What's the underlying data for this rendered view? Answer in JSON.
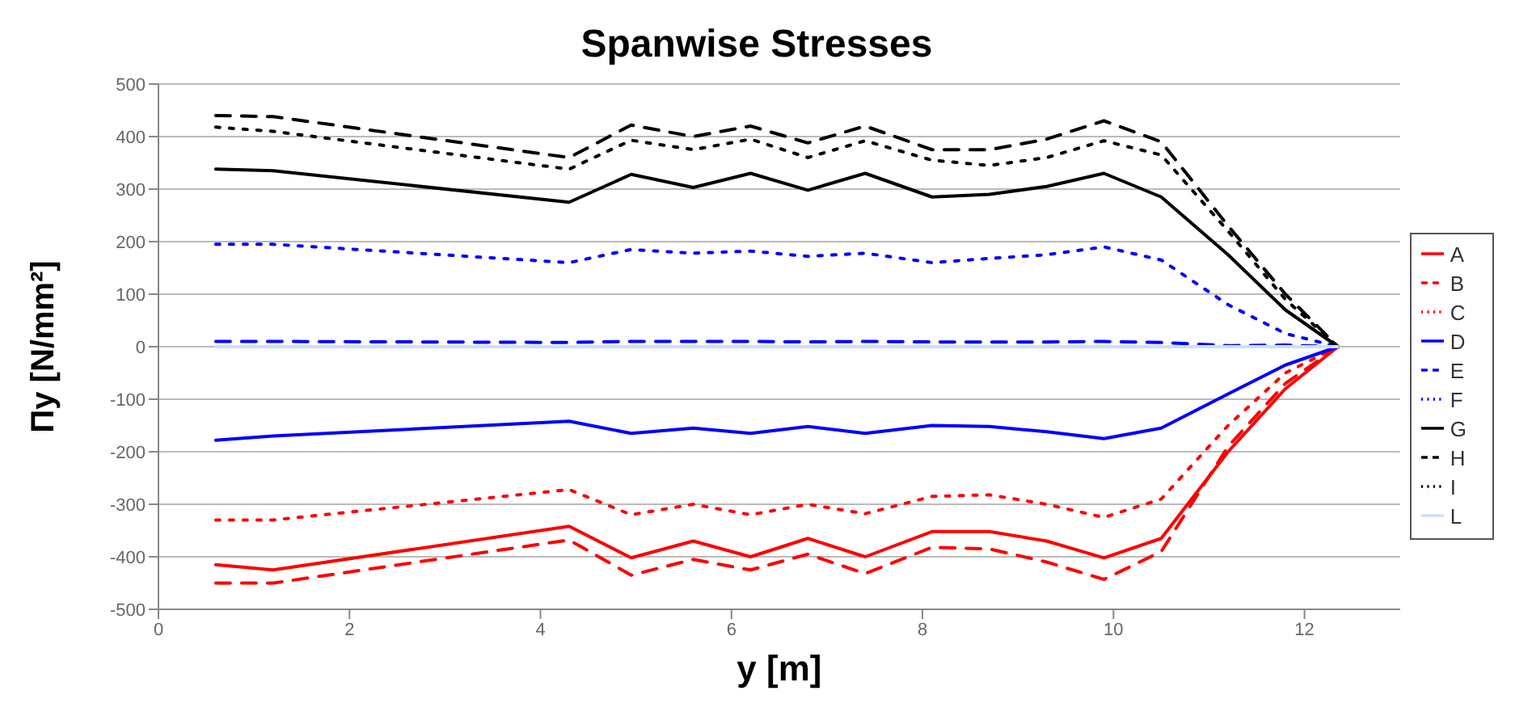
{
  "chart_data": {
    "type": "line",
    "title": "Spanwise Stresses",
    "xlabel": "y [m]",
    "ylabel": "Πy [N/mm²]",
    "x": [
      0.6,
      1.2,
      4.3,
      4.95,
      5.6,
      6.2,
      6.8,
      7.4,
      8.1,
      8.7,
      9.3,
      9.9,
      10.5,
      11.2,
      11.8,
      12.35
    ],
    "xlim": [
      0,
      13
    ],
    "xticks": [
      0,
      2,
      4,
      6,
      8,
      10,
      12
    ],
    "ylim": [
      -500,
      500
    ],
    "yticks": [
      -500,
      -400,
      -300,
      -200,
      -100,
      0,
      100,
      200,
      300,
      400,
      500
    ],
    "grid": "y",
    "legend": "right",
    "marker": "none",
    "series": [
      {
        "name": "A",
        "color": "#ff0000",
        "line_style": "solid",
        "values": [
          -415,
          -425,
          -342,
          -402,
          -370,
          -400,
          -365,
          -400,
          -352,
          -352,
          -370,
          -402,
          -365,
          -200,
          -80,
          0
        ]
      },
      {
        "name": "B",
        "color": "#ff0000",
        "line_style": "dashed",
        "values": [
          -450,
          -450,
          -368,
          -435,
          -405,
          -425,
          -395,
          -432,
          -382,
          -385,
          -410,
          -443,
          -390,
          -190,
          -70,
          0
        ]
      },
      {
        "name": "C",
        "color": "#ff0000",
        "line_style": "dotted",
        "values": [
          -330,
          -330,
          -272,
          -320,
          -300,
          -320,
          -300,
          -318,
          -285,
          -282,
          -300,
          -325,
          -290,
          -150,
          -50,
          0
        ]
      },
      {
        "name": "D",
        "color": "#0000ff",
        "line_style": "solid",
        "values": [
          -178,
          -170,
          -142,
          -165,
          -155,
          -165,
          -152,
          -165,
          -150,
          -152,
          -162,
          -175,
          -155,
          -90,
          -35,
          0
        ]
      },
      {
        "name": "E",
        "color": "#0000ff",
        "line_style": "dashed",
        "values": [
          10,
          10,
          8,
          10,
          10,
          10,
          9,
          10,
          9,
          9,
          9,
          10,
          8,
          2,
          3,
          0
        ]
      },
      {
        "name": "F",
        "color": "#0000ff",
        "line_style": "dotted",
        "values": [
          195,
          195,
          160,
          185,
          178,
          182,
          172,
          178,
          160,
          168,
          175,
          190,
          165,
          80,
          25,
          0
        ]
      },
      {
        "name": "G",
        "color": "#000000",
        "line_style": "solid",
        "values": [
          338,
          335,
          275,
          328,
          303,
          330,
          298,
          330,
          285,
          290,
          305,
          330,
          285,
          175,
          70,
          0
        ]
      },
      {
        "name": "H",
        "color": "#000000",
        "line_style": "dashed",
        "values": [
          440,
          438,
          360,
          422,
          400,
          420,
          388,
          420,
          375,
          375,
          395,
          430,
          390,
          230,
          100,
          0
        ]
      },
      {
        "name": "I",
        "color": "#000000",
        "line_style": "dotted",
        "values": [
          418,
          410,
          338,
          393,
          375,
          395,
          360,
          392,
          355,
          345,
          360,
          392,
          365,
          220,
          90,
          0
        ]
      },
      {
        "name": "L",
        "color": "#cce0ff",
        "line_style": "solid",
        "values": [
          0,
          0,
          0,
          0,
          0,
          0,
          0,
          0,
          0,
          0,
          0,
          0,
          0,
          0,
          0,
          0
        ]
      }
    ]
  }
}
